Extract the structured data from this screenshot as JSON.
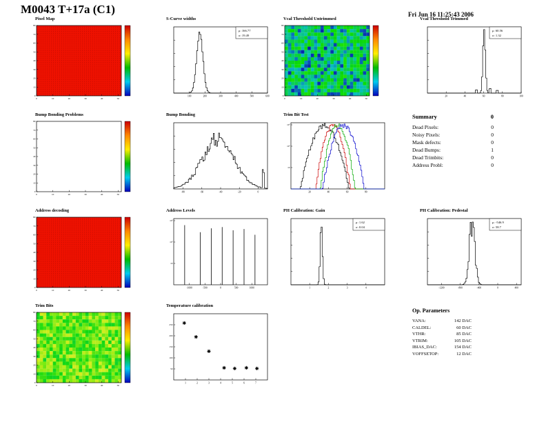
{
  "header": {
    "title": "M0043 T+17a (C1)",
    "date": "Fri Jun 16 11:25:43 2006"
  },
  "summary": {
    "heading": "Summary",
    "heading_value": "0",
    "rows": [
      {
        "label": "Dead Pixels:",
        "value": "0"
      },
      {
        "label": "Noisy Pixels:",
        "value": "0"
      },
      {
        "label": "Mask defects:",
        "value": "0"
      },
      {
        "label": "Dead Bumps:",
        "value": "1"
      },
      {
        "label": "Dead Trimbits:",
        "value": "0"
      },
      {
        "label": "Address Probl:",
        "value": "0"
      }
    ]
  },
  "op_parameters": {
    "heading": "Op. Parameters",
    "rows": [
      {
        "label": "VANA:",
        "value": "142 DAC"
      },
      {
        "label": "CALDEL:",
        "value": "60 DAC"
      },
      {
        "label": "VTHR:",
        "value": "85 DAC"
      },
      {
        "label": "VTRIM:",
        "value": "105 DAC"
      },
      {
        "label": "IBIAS_DAC:",
        "value": "154 DAC"
      },
      {
        "label": "VOFFSETOP:",
        "value": "12 DAC"
      }
    ]
  },
  "palette": {
    "map_red": "#ee1100",
    "colorbar": [
      "#cc0000",
      "#ff8800",
      "#ffee00",
      "#00bb00",
      "#00ccee",
      "#0000bb"
    ]
  },
  "chart_data": [
    {
      "id": "pixel-map",
      "type": "heatmap",
      "title": "Pixel Map",
      "style": "solid-red",
      "x_max": 52,
      "y_max": 80,
      "x_ticks": [
        0,
        10,
        20,
        30,
        40,
        50
      ],
      "y_ticks": [
        0,
        10,
        20,
        30,
        40,
        50,
        60,
        70,
        80
      ],
      "colorbar": true
    },
    {
      "id": "scurve-widths",
      "type": "histogram",
      "title": "S-Curve widths",
      "x_range": [
        0,
        600
      ],
      "x_ticks": [
        100,
        200,
        300,
        400,
        500,
        600
      ],
      "mu": 166.77,
      "sigma": 19.49,
      "peak": 0.95,
      "stats": {
        "mu": "166.77",
        "sigma": "19.49"
      }
    },
    {
      "id": "vcal-threshold-untrimmed",
      "type": "heatmap",
      "title": "Vcal Threshold Untrimmed",
      "style": "noise-green-blue",
      "seed": 11,
      "x_max": 52,
      "y_max": 80,
      "x_ticks": [
        0,
        10,
        20,
        30,
        40,
        50
      ],
      "y_ticks": [
        0,
        10,
        20,
        30,
        40,
        50,
        60,
        70,
        80
      ],
      "colorbar": true
    },
    {
      "id": "vcal-threshold-trimmed",
      "type": "histogram",
      "title": "Vcal Threshold Trimmed",
      "x_range": [
        0,
        100
      ],
      "x_ticks": [
        20,
        40,
        60,
        80,
        100
      ],
      "mu": 60.56,
      "sigma": 1.32,
      "peak": 1,
      "extras": [
        {
          "x": 52,
          "h": 0.05
        },
        {
          "x": 67,
          "h": 0.07
        },
        {
          "x": 74,
          "h": 0.04
        }
      ],
      "stats": {
        "mu": "60.56",
        "sigma": "1.32"
      }
    },
    {
      "id": "bump-bonding-problems",
      "type": "heatmap",
      "title": "Bump Bonding Problems",
      "style": "empty",
      "x_max": 52,
      "y_max": 80,
      "x_ticks": [
        0,
        10,
        20,
        30,
        40,
        50
      ],
      "y_ticks": [
        0,
        10,
        20,
        30,
        40,
        50,
        60,
        70,
        80
      ],
      "colorbar": true
    },
    {
      "id": "bump-bonding",
      "type": "histogram",
      "title": "Bump Bonding",
      "x_range": [
        -90,
        10
      ],
      "x_ticks": [
        -80,
        -60,
        -40,
        -20,
        0
      ],
      "mu": -42,
      "sigma": 17,
      "peak": 0.78,
      "jitter": 0.35,
      "extras": [
        {
          "x": 6,
          "h": 0.3
        }
      ]
    },
    {
      "id": "trim-bit-test",
      "type": "multi-histogram",
      "title": "Trim Bit Test",
      "x_range": [
        0,
        100
      ],
      "x_ticks": [
        20,
        40,
        60,
        80
      ],
      "log_y": true,
      "y_tick_labels": [
        "10",
        "10²",
        "10³"
      ],
      "series": [
        {
          "color": "#000000",
          "mu": 36,
          "sigma": 7
        },
        {
          "color": "#cc0000",
          "mu": 45,
          "sigma": 5
        },
        {
          "color": "#00aa00",
          "mu": 50,
          "sigma": 5
        },
        {
          "color": "#0000cc",
          "mu": 56,
          "sigma": 6
        }
      ]
    },
    {
      "id": "address-decoding",
      "type": "heatmap",
      "title": "Address decoding",
      "style": "solid-red",
      "x_max": 52,
      "y_max": 80,
      "x_ticks": [
        0,
        10,
        20,
        30,
        40,
        50
      ],
      "y_ticks": [
        0,
        10,
        20,
        30,
        40,
        50,
        60,
        70,
        80
      ],
      "colorbar": true
    },
    {
      "id": "address-levels",
      "type": "spikes",
      "title": "Address Levels",
      "x_range": [
        -1500,
        1500
      ],
      "x_ticks": [
        -1000,
        -500,
        0,
        500,
        1000
      ],
      "log_y": true,
      "y_tick_labels": [
        "10",
        "10²",
        "10³"
      ],
      "spikes": [
        [
          -1150,
          0.93
        ],
        [
          -650,
          0.82
        ],
        [
          -300,
          0.88
        ],
        [
          50,
          0.9
        ],
        [
          400,
          0.85
        ],
        [
          750,
          0.87
        ],
        [
          1100,
          0.78
        ]
      ]
    },
    {
      "id": "ph-calibration-gain",
      "type": "histogram",
      "title": "PH Calibration: Gain",
      "x_range": [
        0,
        5
      ],
      "x_ticks": [
        1,
        2,
        3,
        4
      ],
      "mu": 1.62,
      "sigma": 0.04,
      "peak": 0.97,
      "stats": {
        "mu": "1.62",
        "sigma": "0.04"
      }
    },
    {
      "id": "ph-calibration-pedestal",
      "type": "histogram",
      "title": "PH Calibration: Pedestal",
      "x_range": [
        -1500,
        500
      ],
      "x_ticks": [
        -1200,
        -800,
        -400,
        0,
        400
      ],
      "mu": -546.9,
      "sigma": 58.7,
      "peak": 0.95,
      "jitter": 0.5,
      "stats": {
        "mu": "-546.9",
        "sigma": "58.7"
      }
    },
    {
      "id": "trim-bits",
      "type": "heatmap",
      "title": "Trim Bits",
      "style": "noise-green-yellow",
      "seed": 23,
      "x_max": 52,
      "y_max": 80,
      "x_ticks": [
        0,
        10,
        20,
        30,
        40,
        50
      ],
      "y_ticks": [
        0,
        10,
        20,
        30,
        40,
        50,
        60,
        70,
        80
      ],
      "colorbar": true
    },
    {
      "id": "temperature-calibration",
      "type": "scatter",
      "title": "Temperature calibration",
      "marker": "star",
      "x_range": [
        0,
        8
      ],
      "y_range": [
        0,
        300
      ],
      "x_ticks": [
        1,
        2,
        3,
        4,
        5,
        6,
        7
      ],
      "y_ticks": [
        50,
        100,
        150,
        200,
        250
      ],
      "points": [
        [
          0.9,
          258
        ],
        [
          1.9,
          195
        ],
        [
          3.0,
          130
        ],
        [
          4.3,
          55
        ],
        [
          5.2,
          52
        ],
        [
          6.2,
          55
        ],
        [
          7.1,
          52
        ]
      ]
    }
  ]
}
